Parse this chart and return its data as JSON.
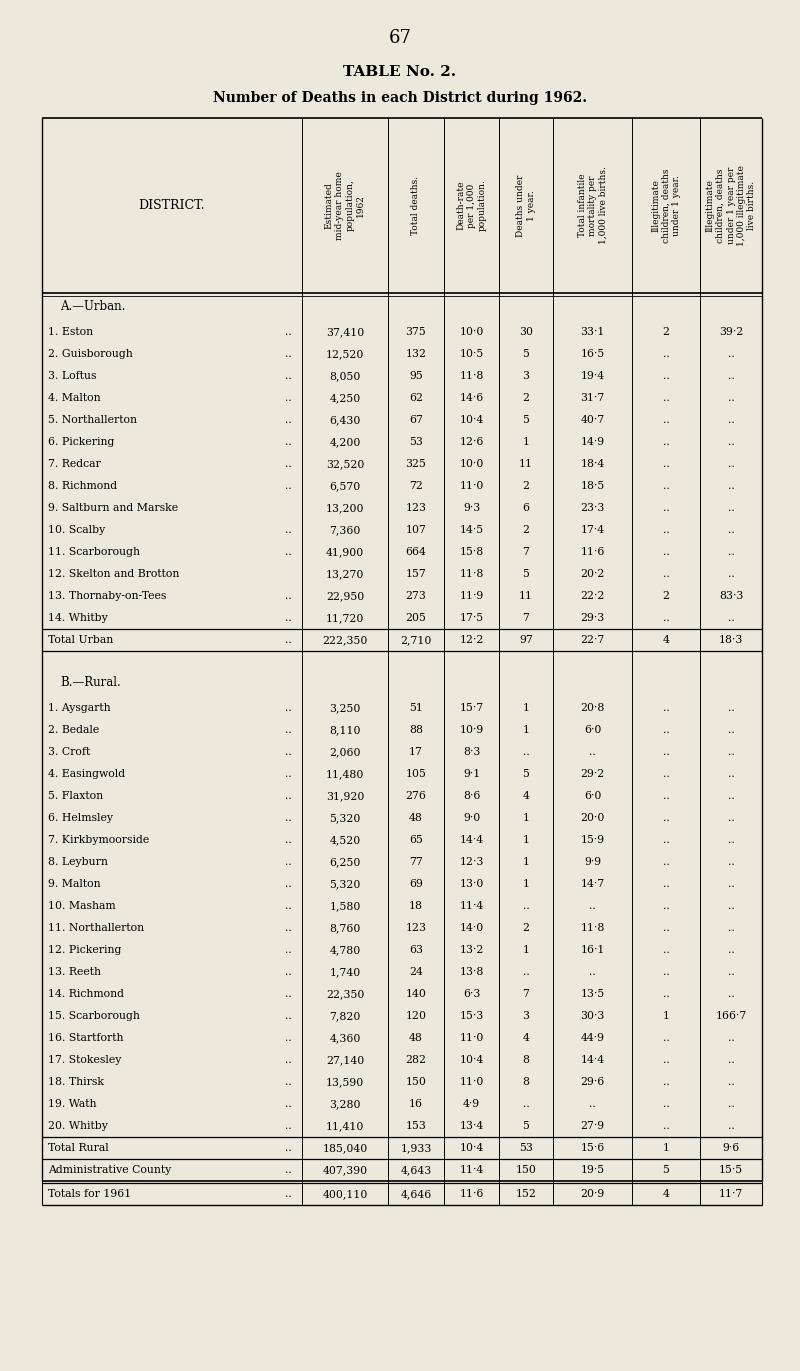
{
  "page_number": "67",
  "title": "TABLE No. 2.",
  "subtitle": "Number of Deaths in each District during 1962.",
  "bg_color": "#ede8dc",
  "col_headers": [
    "Estimated\nmid-year home\npopulation,\n1962",
    "Total deaths.",
    "Death-rate\nper 1,000\npopulation.",
    "Deaths under\n1 year.",
    "Total infantile\nmortality per\n1,000 live births.",
    "Illegitimate\nchildren, deaths\nunder 1 year.",
    "Illegitimate\nchildren, deaths\nunder 1 year per\n1,000 illegitimate\nlive births."
  ],
  "section_urban": "A.—Urban.",
  "urban_rows": [
    [
      "1. Eston",
      "37,410",
      "375",
      "10·0",
      "30",
      "33·1",
      "2",
      "39·2"
    ],
    [
      "2. Guisborough",
      "12,520",
      "132",
      "10·5",
      "5",
      "16·5",
      "..",
      ".."
    ],
    [
      "3. Loftus",
      "8,050",
      "95",
      "11·8",
      "3",
      "19·4",
      "..",
      ".."
    ],
    [
      "4. Malton",
      "4,250",
      "62",
      "14·6",
      "2",
      "31·7",
      "..",
      ".."
    ],
    [
      "5. Northallerton",
      "6,430",
      "67",
      "10·4",
      "5",
      "40·7",
      "..",
      ".."
    ],
    [
      "6. Pickering",
      "4,200",
      "53",
      "12·6",
      "1",
      "14·9",
      "..",
      ".."
    ],
    [
      "7. Redcar",
      "32,520",
      "325",
      "10·0",
      "11",
      "18·4",
      "..",
      ".."
    ],
    [
      "8. Richmond",
      "6,570",
      "72",
      "11·0",
      "2",
      "18·5",
      "..",
      ".."
    ],
    [
      "9. Saltburn and Marske",
      "13,200",
      "123",
      "9·3",
      "6",
      "23·3",
      "..",
      ".."
    ],
    [
      "10. Scalby",
      "7,360",
      "107",
      "14·5",
      "2",
      "17·4",
      "..",
      ".."
    ],
    [
      "11. Scarborough",
      "41,900",
      "664",
      "15·8",
      "7",
      "11·6",
      "..",
      ".."
    ],
    [
      "12. Skelton and Brotton",
      "13,270",
      "157",
      "11·8",
      "5",
      "20·2",
      "..",
      ".."
    ],
    [
      "13. Thornaby-on-Tees",
      "22,950",
      "273",
      "11·9",
      "11",
      "22·2",
      "2",
      "83·3"
    ],
    [
      "14. Whitby",
      "11,720",
      "205",
      "17·5",
      "7",
      "29·3",
      "..",
      ".."
    ]
  ],
  "urban_dots": [
    "..",
    "..",
    "..",
    "..",
    "..",
    "..",
    "..",
    "..",
    "",
    "..",
    "..",
    "",
    "..",
    ".."
  ],
  "total_urban": [
    "Total Urban",
    "222,350",
    "2,710",
    "12·2",
    "97",
    "22·7",
    "4",
    "18·3"
  ],
  "section_rural": "B.—Rural.",
  "rural_rows": [
    [
      "1. Aysgarth",
      "3,250",
      "51",
      "15·7",
      "1",
      "20·8",
      "..",
      ".."
    ],
    [
      "2. Bedale",
      "8,110",
      "88",
      "10·9",
      "1",
      "6·0",
      "..",
      ".."
    ],
    [
      "3. Croft",
      "2,060",
      "17",
      "8·3",
      "..",
      "..",
      "..",
      ".."
    ],
    [
      "4. Easingwold",
      "11,480",
      "105",
      "9·1",
      "5",
      "29·2",
      "..",
      ".."
    ],
    [
      "5. Flaxton",
      "31,920",
      "276",
      "8·6",
      "4",
      "6·0",
      "..",
      ".."
    ],
    [
      "6. Helmsley",
      "5,320",
      "48",
      "9·0",
      "1",
      "20·0",
      "..",
      ".."
    ],
    [
      "7. Kirkbymoorside",
      "4,520",
      "65",
      "14·4",
      "1",
      "15·9",
      "..",
      ".."
    ],
    [
      "8. Leyburn",
      "6,250",
      "77",
      "12·3",
      "1",
      "9·9",
      "..",
      ".."
    ],
    [
      "9. Malton",
      "5,320",
      "69",
      "13·0",
      "1",
      "14·7",
      "..",
      ".."
    ],
    [
      "10. Masham",
      "1,580",
      "18",
      "11·4",
      "..",
      "..",
      "..",
      ".."
    ],
    [
      "11. Northallerton",
      "8,760",
      "123",
      "14·0",
      "2",
      "11·8",
      "..",
      ".."
    ],
    [
      "12. Pickering",
      "4,780",
      "63",
      "13·2",
      "1",
      "16·1",
      "..",
      ".."
    ],
    [
      "13. Reeth",
      "1,740",
      "24",
      "13·8",
      "..",
      "..",
      "..",
      ".."
    ],
    [
      "14. Richmond",
      "22,350",
      "140",
      "6·3",
      "7",
      "13·5",
      "..",
      ".."
    ],
    [
      "15. Scarborough",
      "7,820",
      "120",
      "15·3",
      "3",
      "30·3",
      "1",
      "166·7"
    ],
    [
      "16. Startforth",
      "4,360",
      "48",
      "11·0",
      "4",
      "44·9",
      "..",
      ".."
    ],
    [
      "17. Stokesley",
      "27,140",
      "282",
      "10·4",
      "8",
      "14·4",
      "..",
      ".."
    ],
    [
      "18. Thirsk",
      "13,590",
      "150",
      "11·0",
      "8",
      "29·6",
      "..",
      ".."
    ],
    [
      "19. Wath",
      "3,280",
      "16",
      "4·9",
      "..",
      "..",
      "..",
      ".."
    ],
    [
      "20. Whitby",
      "11,410",
      "153",
      "13·4",
      "5",
      "27·9",
      "..",
      ".."
    ]
  ],
  "rural_dots": [
    "..",
    "..",
    "..",
    "..",
    "..",
    "..",
    "..",
    "..",
    "..",
    "..",
    "..",
    "..",
    "..",
    "..",
    "..",
    "..",
    "..",
    "..",
    "..",
    ".."
  ],
  "total_rural": [
    "Total Rural",
    "185,040",
    "1,933",
    "10·4",
    "53",
    "15·6",
    "1",
    "9·6"
  ],
  "admin_county": [
    "Administrative County",
    "407,390",
    "4,643",
    "11·4",
    "150",
    "19·5",
    "5",
    "15·5"
  ],
  "totals_1961": [
    "Totals for 1961",
    "400,110",
    "4,646",
    "11·6",
    "152",
    "20·9",
    "4",
    "11·7"
  ]
}
